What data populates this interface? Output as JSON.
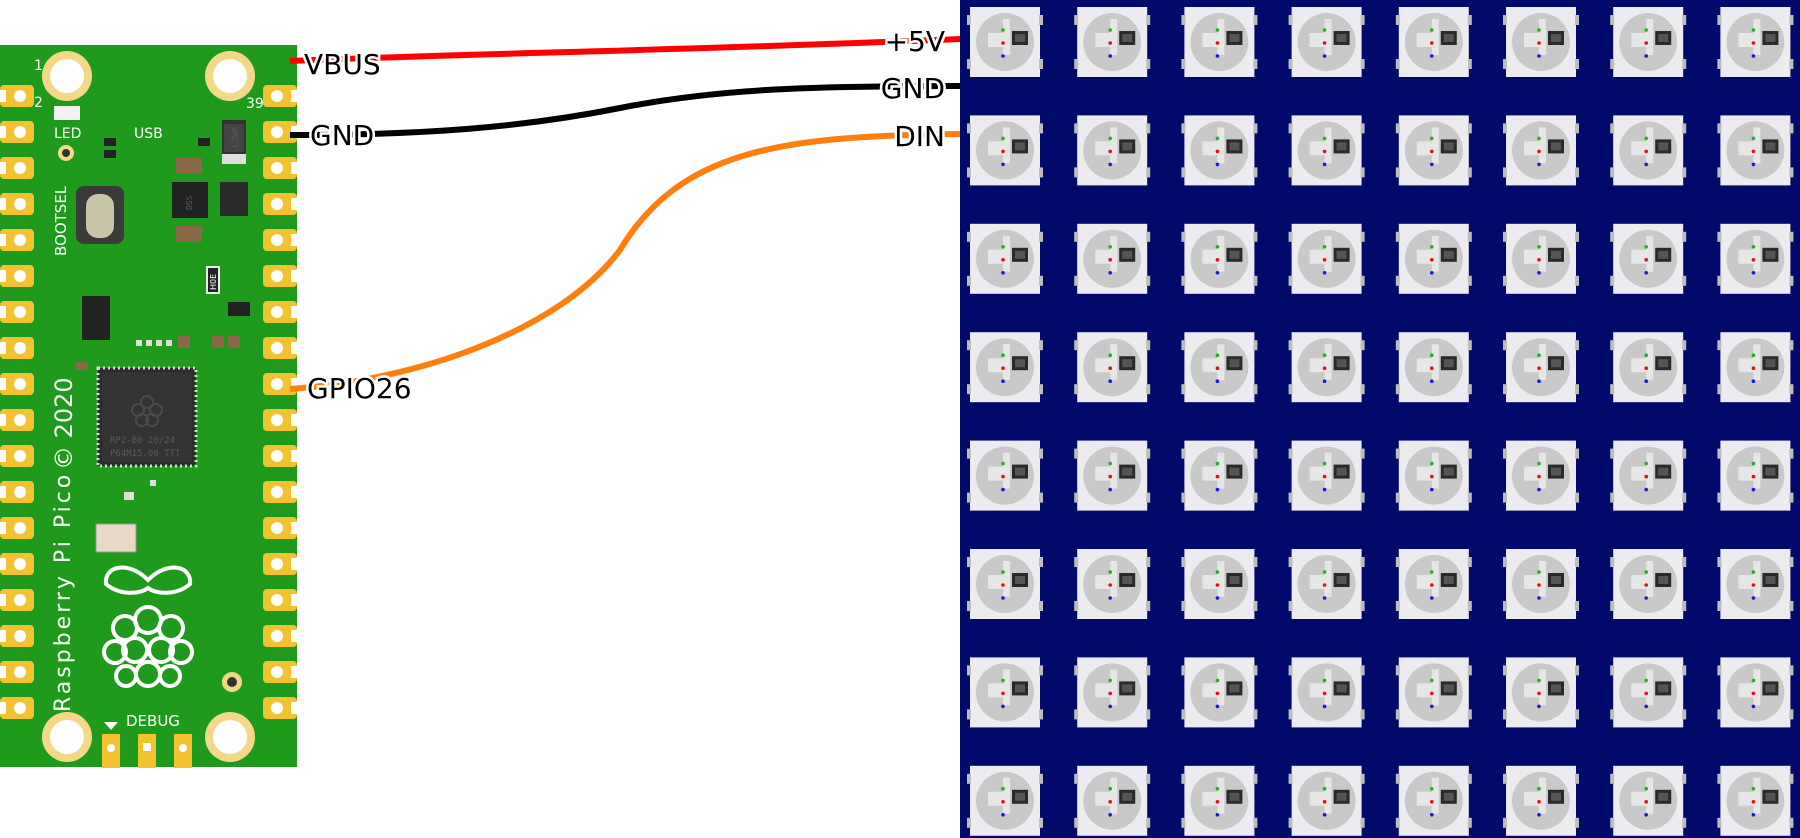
{
  "pico": {
    "name": "Raspberry Pi Pico",
    "year": "© 2020",
    "bootsel": "BOOTSEL",
    "led": "LED",
    "usb": "USB",
    "debug": "DEBUG",
    "pin1": "1",
    "pin2": "2",
    "pin39": "39",
    "chip_line1": "RP2-B0  20/24",
    "chip_line2": "P64M15.00 TTT",
    "reg_mark": "L2WK",
    "flash_mark": "H0E",
    "small_mark": "DSS"
  },
  "wires": [
    {
      "id": "vbus",
      "from": "VBUS",
      "to": "+5V",
      "color": "#ff0000"
    },
    {
      "id": "gnd",
      "from": "GND",
      "to": "GND",
      "color": "#000000"
    },
    {
      "id": "gpio",
      "from": "GPIO26",
      "to": "DIN",
      "color": "#ff7f0e"
    }
  ],
  "matrix": {
    "rows": 8,
    "cols": 8,
    "background": "#010a6b",
    "pixel_color": "#ecebef"
  },
  "colors": {
    "pcb": "#1f9a1c",
    "pad": "#f2c230",
    "pad_inner": "#ffffff"
  }
}
